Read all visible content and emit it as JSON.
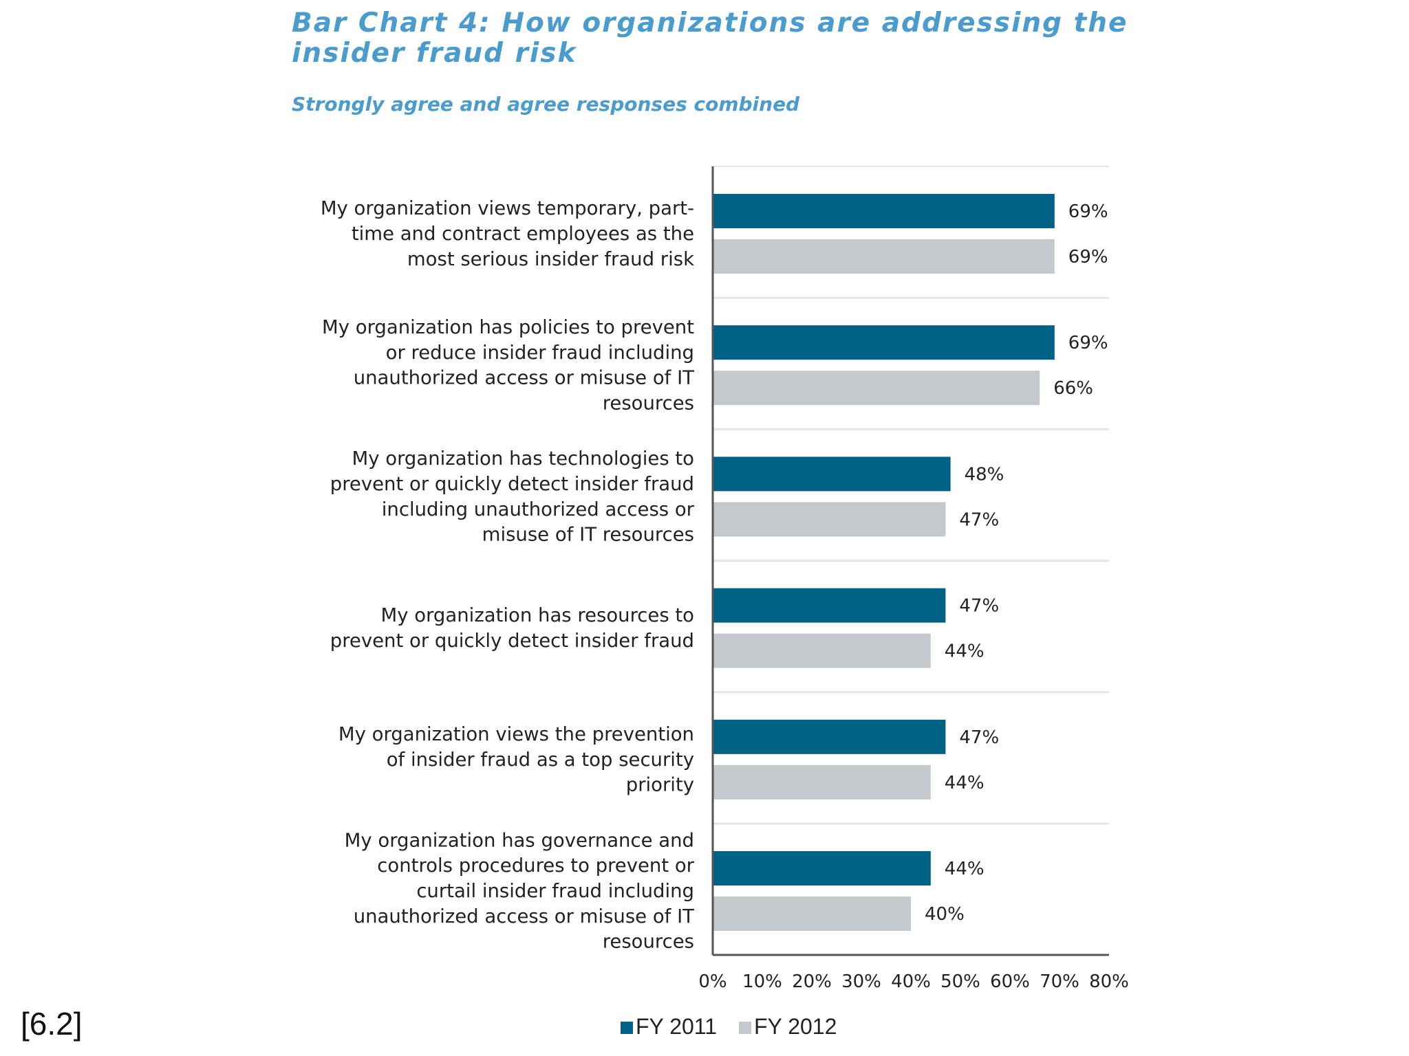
{
  "footnote": "[6.2]",
  "colors": {
    "fy2011": "#006186",
    "fy2012": "#c4c9cd",
    "title": "#4a9ccf",
    "separator": "#e3e6e8",
    "axis": "#555555"
  },
  "chart_data": {
    "type": "bar",
    "orientation": "horizontal",
    "title": "Bar Chart 4: How organizations are addressing the insider fraud risk",
    "subtitle": "Strongly agree and agree responses combined",
    "xlabel": "",
    "ylabel": "",
    "xlim": [
      0,
      80
    ],
    "x_ticks": [
      "0%",
      "10%",
      "20%",
      "30%",
      "40%",
      "50%",
      "60%",
      "70%",
      "80%"
    ],
    "grid": false,
    "legend_position": "bottom",
    "categories": [
      [
        "My organization views temporary, part-",
        "time and contract employees as the",
        "most serious insider fraud risk"
      ],
      [
        "My organization has policies to prevent",
        "or reduce insider fraud including",
        "unauthorized access or misuse of IT",
        "resources"
      ],
      [
        "My organization has technologies to",
        "prevent or quickly detect insider fraud",
        "including unauthorized access or",
        "misuse of IT resources"
      ],
      [
        "My organization has resources to",
        "prevent or quickly detect insider fraud"
      ],
      [
        "My organization views the prevention",
        "of insider fraud as a top security",
        "priority"
      ],
      [
        "My organization has governance and",
        "controls procedures to prevent or",
        "curtail insider fraud including",
        "unauthorized access or misuse of IT",
        "resources"
      ]
    ],
    "series": [
      {
        "name": "FY 2011",
        "values": [
          69,
          69,
          48,
          47,
          47,
          44
        ],
        "labels": [
          "69%",
          "69%",
          "48%",
          "47%",
          "47%",
          "44%"
        ]
      },
      {
        "name": "FY 2012",
        "values": [
          69,
          66,
          47,
          44,
          44,
          40
        ],
        "labels": [
          "69%",
          "66%",
          "47%",
          "44%",
          "44%",
          "40%"
        ]
      }
    ]
  }
}
